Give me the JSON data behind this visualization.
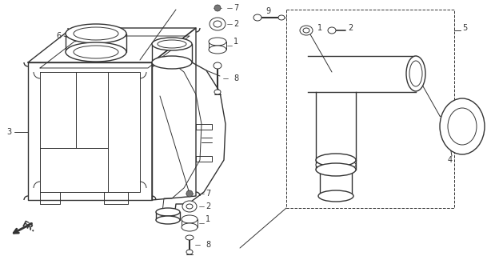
{
  "bg_color": "#ffffff",
  "line_color": "#333333",
  "fig_width": 6.14,
  "fig_height": 3.2,
  "dpi": 100
}
